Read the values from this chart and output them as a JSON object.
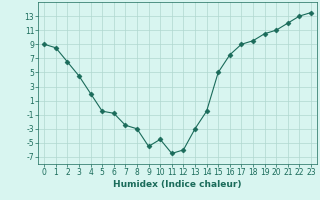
{
  "x": [
    0,
    1,
    2,
    3,
    4,
    5,
    6,
    7,
    8,
    9,
    10,
    11,
    12,
    13,
    14,
    15,
    16,
    17,
    18,
    19,
    20,
    21,
    22,
    23
  ],
  "y": [
    9,
    8.5,
    6.5,
    4.5,
    2,
    -0.5,
    -0.8,
    -2.5,
    -3,
    -5.5,
    -4.5,
    -6.5,
    -6,
    -3,
    -0.5,
    5,
    7.5,
    9,
    9.5,
    10.5,
    11,
    12,
    13,
    13.5
  ],
  "line_color": "#1a6b5a",
  "marker": "D",
  "marker_size": 2.5,
  "bg_color": "#d8f5f0",
  "grid_color": "#b0d8d0",
  "xlabel": "Humidex (Indice chaleur)",
  "xlim": [
    -0.5,
    23.5
  ],
  "ylim": [
    -8,
    15
  ],
  "yticks": [
    -7,
    -5,
    -3,
    -1,
    1,
    3,
    5,
    7,
    9,
    11,
    13
  ],
  "xticks": [
    0,
    1,
    2,
    3,
    4,
    5,
    6,
    7,
    8,
    9,
    10,
    11,
    12,
    13,
    14,
    15,
    16,
    17,
    18,
    19,
    20,
    21,
    22,
    23
  ],
  "xlabel_fontsize": 6.5,
  "tick_fontsize": 5.5
}
